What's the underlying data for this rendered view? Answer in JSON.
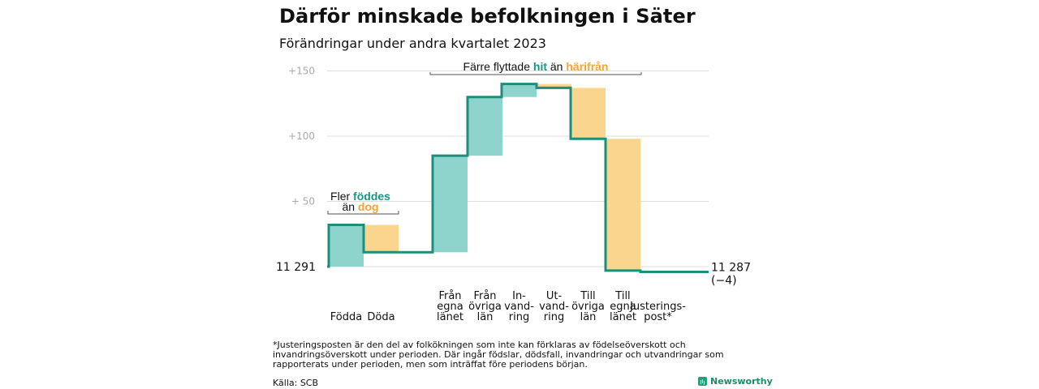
{
  "title": "Därför minskade befolkningen i Säter",
  "subtitle": "Förändringar under andra kvartalet 2023",
  "chart_data": {
    "type": "waterfall",
    "start_label": "11  291",
    "end_label": "11 287",
    "end_change": "(−4)",
    "y_ticks": [
      {
        "value": 150,
        "label": "+150"
      },
      {
        "value": 100,
        "label": "+100"
      },
      {
        "value": 50,
        "label": "+  50"
      }
    ],
    "ylim": [
      0,
      150
    ],
    "steps": [
      {
        "category": "Födda",
        "value": 32,
        "direction": "in"
      },
      {
        "category": "Döda",
        "value": -21,
        "direction": "out"
      },
      {
        "category": "Från egna länet",
        "value": 74,
        "direction": "in"
      },
      {
        "category": "Från övriga län",
        "value": 45,
        "direction": "in"
      },
      {
        "category": "In-vandring",
        "value": 10,
        "direction": "in"
      },
      {
        "category": "Ut-vandring",
        "value": -3,
        "direction": "out"
      },
      {
        "category": "Till övriga län",
        "value": -39,
        "direction": "out"
      },
      {
        "category": "Till egna länet",
        "value": -101,
        "direction": "out"
      },
      {
        "category": "Justerings-post*",
        "value": -1,
        "direction": "adjust"
      }
    ],
    "category_lines": [
      [
        "Födda"
      ],
      [
        "Döda"
      ],
      [
        "Från",
        "egna",
        "länet"
      ],
      [
        "Från",
        "övriga",
        "län"
      ],
      [
        "In-",
        "vand-",
        "ring"
      ],
      [
        "Ut-",
        "vand-",
        "ring"
      ],
      [
        "Till",
        "övriga",
        "län"
      ],
      [
        "Till",
        "egna",
        "länet"
      ],
      [
        "Justerings-",
        "post*"
      ]
    ],
    "annotations": {
      "births": {
        "line1_a": "Fler ",
        "line1_b": "föddes",
        "line2_a": "än ",
        "line2_b": "dog"
      },
      "moves": {
        "a": "Färre flyttade ",
        "b": "hit",
        "c": " än ",
        "d": "härifrån"
      }
    },
    "colors": {
      "in": "#8ed4cc",
      "out": "#fad58e",
      "line": "#1b8f7c",
      "in_text": "#1b9481",
      "out_text": "#f2a531",
      "grid": "#dddddd",
      "tick": "#aaaaaa"
    }
  },
  "footnote": "*Justeringsposten är den del av folkökningen som inte kan förklaras av födelseöverskott och invandringsöverskott under perioden. Där ingår födslar, dödsfall, invandringar och utvandringar som rapporterats under perioden, men som inträffat före periodens början.",
  "source": "Källa: SCB",
  "brand": "Newsworthy"
}
